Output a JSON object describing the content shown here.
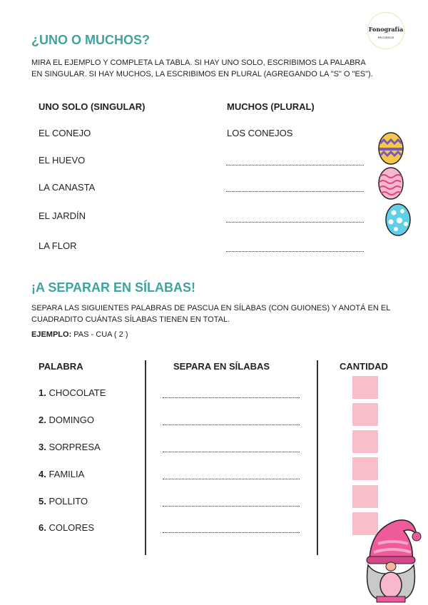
{
  "logo": {
    "text": "Fonografía",
    "subtext": "RECURSOS"
  },
  "section1": {
    "title": "¿UNO O MUCHOS?",
    "instructions": [
      "MIRA EL EJEMPLO Y COMPLETA LA TABLA. SI HAY UNO SOLO, ESCRIBIMOS LA PALABRA",
      "EN SINGULAR. SI HAY MUCHOS, LA ESCRIBIMOS EN PLURAL (AGREGANDO LA \"S\" O \"ES\")."
    ],
    "headers": {
      "singular": "UNO SOLO (SINGULAR)",
      "plural": "MUCHOS (PLURAL)"
    },
    "rows": [
      {
        "singular": "EL CONEJO",
        "plural": "LOS CONEJOS"
      },
      {
        "singular": "EL HUEVO",
        "plural": ""
      },
      {
        "singular": "LA CANASTA",
        "plural": ""
      },
      {
        "singular": "EL JARDÍN",
        "plural": ""
      },
      {
        "singular": "LA FLOR",
        "plural": ""
      }
    ]
  },
  "section2": {
    "title": "¡A SEPARAR EN SÍLABAS!",
    "instructions": [
      "SEPARA LAS SIGUIENTES PALABRAS DE PASCUA EN SÍLABAS (CON GUIONES) Y ANOTÁ EN EL",
      "CUADRADITO CUÁNTAS SÍLABAS TIENEN EN TOTAL."
    ],
    "example_label": "EJEMPLO:",
    "example_value": " PAS - CUA ( 2 )",
    "headers": {
      "word": "PALABRA",
      "split": "SEPARA EN SÍLABAS",
      "count": "CANTIDAD"
    },
    "rows": [
      {
        "num": "1.",
        "word": " CHOCOLATE"
      },
      {
        "num": "2.",
        "word": " DOMINGO"
      },
      {
        "num": "3.",
        "word": " SORPRESA"
      },
      {
        "num": "4.",
        "word": " FAMILIA"
      },
      {
        "num": "5.",
        "word": " POLLITO"
      },
      {
        "num": "6.",
        "word": " COLORES"
      }
    ]
  },
  "colors": {
    "accent": "#3fa39e",
    "box": "#f8bfcb"
  }
}
